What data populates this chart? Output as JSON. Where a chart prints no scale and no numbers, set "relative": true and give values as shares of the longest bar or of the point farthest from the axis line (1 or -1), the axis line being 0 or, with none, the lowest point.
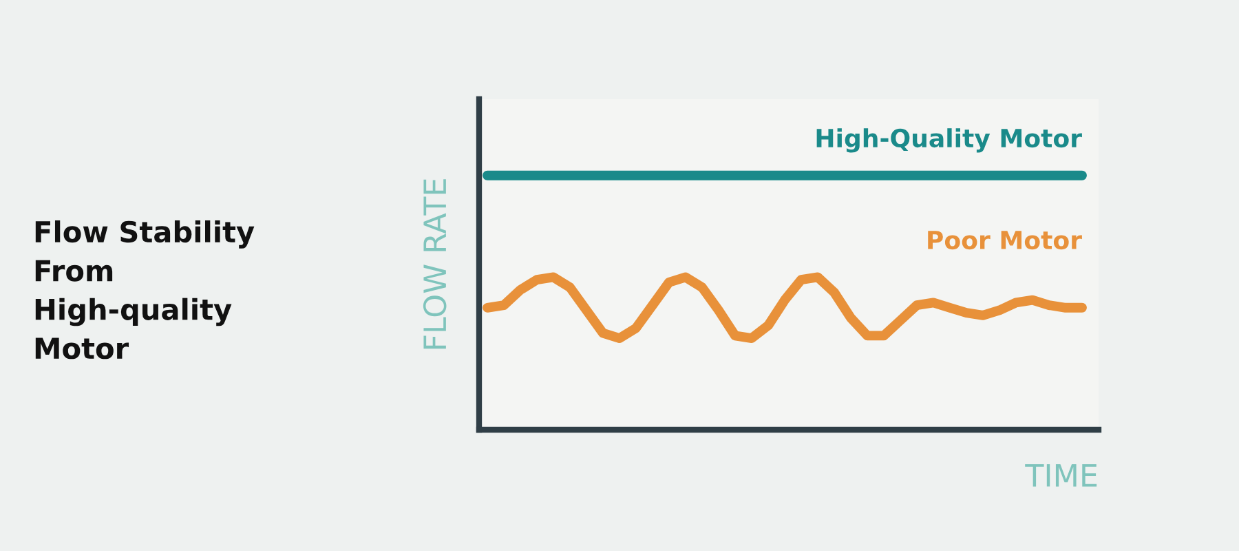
{
  "chart_data": {
    "type": "line",
    "title": "Flow Stability From High-quality Motor",
    "xlabel": "TIME",
    "ylabel": "FLOW RATE",
    "relative": true,
    "legend": false,
    "marker": "none",
    "line_style": "solid",
    "categories": [
      null,
      null,
      null,
      null,
      null,
      null,
      null,
      null,
      null,
      null,
      null,
      null,
      null,
      null,
      null,
      null,
      null,
      null,
      null,
      null,
      null,
      null,
      null,
      null,
      null,
      null,
      null,
      null,
      null,
      null,
      null,
      null,
      null,
      null,
      null,
      null,
      null
    ],
    "series": [
      {
        "name": "High-Quality Motor",
        "color": "#1a8a8a",
        "values": [
          1,
          1,
          1,
          1,
          1,
          1,
          1,
          1,
          1,
          1,
          1,
          1,
          1,
          1,
          1,
          1,
          1,
          1,
          1,
          1,
          1,
          1,
          1,
          1,
          1,
          1,
          1,
          1,
          1,
          1,
          1,
          1,
          1,
          1,
          1,
          1,
          1
        ]
      },
      {
        "name": "Poor Motor",
        "color": "#e8913a",
        "values": [
          0.48,
          0.49,
          0.55,
          0.59,
          0.6,
          0.56,
          0.47,
          0.38,
          0.36,
          0.4,
          0.49,
          0.58,
          0.6,
          0.56,
          0.47,
          0.37,
          0.36,
          0.41,
          0.51,
          0.59,
          0.6,
          0.54,
          0.44,
          0.37,
          0.37,
          0.43,
          0.49,
          0.5,
          0.48,
          0.46,
          0.45,
          0.47,
          0.5,
          0.51,
          0.49,
          0.48,
          0.48
        ]
      }
    ]
  }
}
